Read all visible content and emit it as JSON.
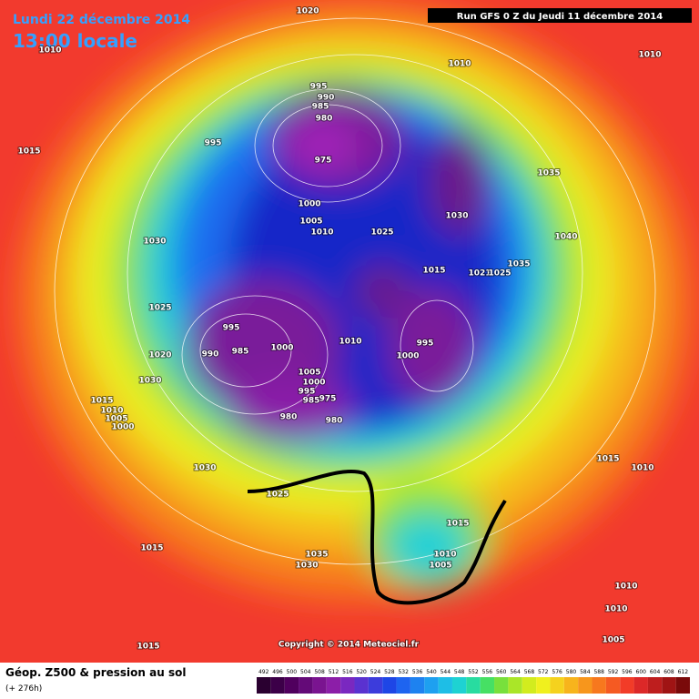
{
  "header": {
    "date": "Lundi 22 décembre 2014",
    "time": "13:00 locale",
    "run": "Run GFS 0 Z du Jeudi 11 décembre 2014"
  },
  "map": {
    "isobar_labels": [
      "1020",
      "1010",
      "1010",
      "1010",
      "995",
      "990",
      "985",
      "980",
      "975",
      "995",
      "1015",
      "1035",
      "1030",
      "1000",
      "1005",
      "1010",
      "1025",
      "1040",
      "1030",
      "1035",
      "1015",
      "1021",
      "1025",
      "1025",
      "995",
      "990",
      "985",
      "1000",
      "1010",
      "995",
      "1000",
      "1020",
      "1030",
      "1005",
      "1000",
      "995",
      "985",
      "975",
      "980",
      "980",
      "1015",
      "1010",
      "1005",
      "1000",
      "1030",
      "1025",
      "1015",
      "1010",
      "1015",
      "1015",
      "1035",
      "1030",
      "1010",
      "1005",
      "1010",
      "1010",
      "1005",
      "1015"
    ],
    "copyright": "Copyright © 2014 Meteociel.fr"
  },
  "footer": {
    "title": "Géop. Z500 & pression au sol",
    "lead": "(+ 276h)",
    "scale": [
      492,
      496,
      500,
      504,
      508,
      512,
      516,
      520,
      524,
      528,
      532,
      536,
      540,
      544,
      548,
      552,
      556,
      560,
      564,
      568,
      572,
      576,
      580,
      584,
      588,
      592,
      596,
      600,
      604,
      608,
      612
    ]
  }
}
